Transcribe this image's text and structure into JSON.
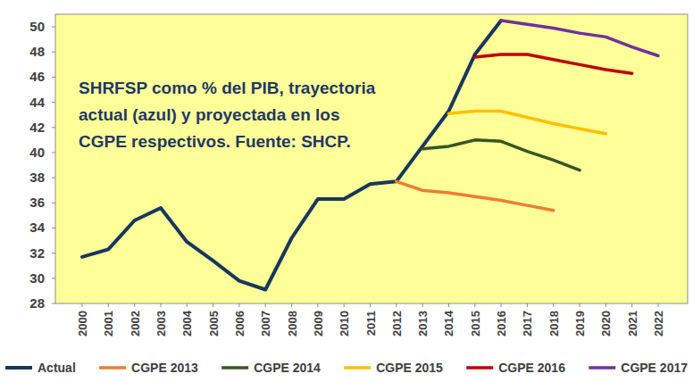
{
  "chart_data": {
    "type": "line",
    "annotations": [
      "SHRFSP como % del PIB, trayectoria",
      "actual (azul) y proyectada en los",
      "CGPE respectivos. Fuente: SHCP."
    ],
    "categories": [
      "2000",
      "2001",
      "2002",
      "2003",
      "2004",
      "2005",
      "2006",
      "2007",
      "2008",
      "2009",
      "2010",
      "2011",
      "2012",
      "2013",
      "2014",
      "2015",
      "2016",
      "2017",
      "2018",
      "2019",
      "2020",
      "2021",
      "2022"
    ],
    "series": [
      {
        "name": "Actual",
        "color": "#17375e",
        "values": [
          31.7,
          32.3,
          34.6,
          35.6,
          32.9,
          31.4,
          29.8,
          29.1,
          33.2,
          36.3,
          36.3,
          37.5,
          37.7,
          40.5,
          43.3,
          47.8,
          50.5,
          null,
          null,
          null,
          null,
          null,
          null
        ]
      },
      {
        "name": "CGPE 2013",
        "color": "#ed7d31",
        "values": [
          null,
          null,
          null,
          null,
          null,
          null,
          null,
          null,
          null,
          null,
          null,
          null,
          37.7,
          37.0,
          36.8,
          36.5,
          36.2,
          35.8,
          35.4,
          null,
          null,
          null,
          null
        ]
      },
      {
        "name": "CGPE 2014",
        "color": "#375623",
        "values": [
          null,
          null,
          null,
          null,
          null,
          null,
          null,
          null,
          null,
          null,
          null,
          null,
          null,
          40.3,
          40.5,
          41.0,
          40.9,
          40.1,
          39.4,
          38.6,
          null,
          null,
          null
        ]
      },
      {
        "name": "CGPE 2015",
        "color": "#ffc000",
        "values": [
          null,
          null,
          null,
          null,
          null,
          null,
          null,
          null,
          null,
          null,
          null,
          null,
          null,
          null,
          43.1,
          43.3,
          43.3,
          42.8,
          42.3,
          41.9,
          41.5,
          null,
          null
        ]
      },
      {
        "name": "CGPE 2016",
        "color": "#c00000",
        "values": [
          null,
          null,
          null,
          null,
          null,
          null,
          null,
          null,
          null,
          null,
          null,
          null,
          null,
          null,
          null,
          47.6,
          47.8,
          47.8,
          47.4,
          47.0,
          46.6,
          46.3,
          null
        ]
      },
      {
        "name": "CGPE 2017",
        "color": "#7030a0",
        "values": [
          null,
          null,
          null,
          null,
          null,
          null,
          null,
          null,
          null,
          null,
          null,
          null,
          null,
          null,
          null,
          null,
          50.5,
          50.2,
          49.9,
          49.5,
          49.2,
          48.4,
          47.7
        ]
      }
    ],
    "ylim": [
      28,
      51
    ],
    "yticks": [
      28,
      30,
      32,
      34,
      36,
      38,
      40,
      42,
      44,
      46,
      48,
      50
    ],
    "grid": false,
    "legend": "bottom"
  }
}
